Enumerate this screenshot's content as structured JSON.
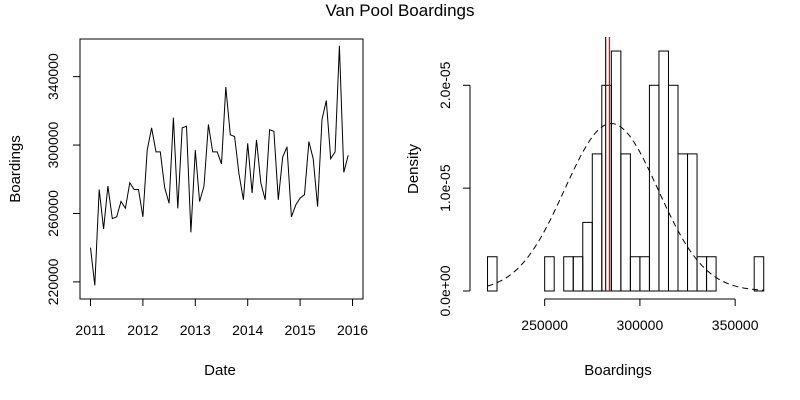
{
  "title": "Van Pool Boardings",
  "colors": {
    "line": "#000000",
    "mean_line": "#7f0000",
    "median_line": "#ff0000"
  },
  "chart_data": [
    {
      "type": "line",
      "xlabel": "Date",
      "ylabel": "Boardings",
      "xlim": [
        2010.8,
        2016.2
      ],
      "ylim": [
        210000,
        362000
      ],
      "xticks": [
        2011,
        2012,
        2013,
        2014,
        2015,
        2016
      ],
      "yticks": [
        220000,
        260000,
        300000,
        340000
      ],
      "series": [
        {
          "x": [
            2011.0,
            2011.083,
            2011.167,
            2011.25,
            2011.333,
            2011.417,
            2011.5,
            2011.583,
            2011.667,
            2011.75,
            2011.833,
            2011.917,
            2012.0,
            2012.083,
            2012.167,
            2012.25,
            2012.333,
            2012.417,
            2012.5,
            2012.583,
            2012.667,
            2012.75,
            2012.833,
            2012.917,
            2013.0,
            2013.083,
            2013.167,
            2013.25,
            2013.333,
            2013.417,
            2013.5,
            2013.583,
            2013.667,
            2013.75,
            2013.833,
            2013.917,
            2014.0,
            2014.083,
            2014.167,
            2014.25,
            2014.333,
            2014.417,
            2014.5,
            2014.583,
            2014.667,
            2014.75,
            2014.833,
            2014.917,
            2015.0,
            2015.083,
            2015.167,
            2015.25,
            2015.333,
            2015.417,
            2015.5,
            2015.583,
            2015.667,
            2015.75,
            2015.833,
            2015.917
          ],
          "y": [
            240000,
            218000,
            274000,
            251000,
            276000,
            257000,
            258000,
            267000,
            263000,
            278000,
            274000,
            274000,
            258000,
            297000,
            310000,
            296000,
            296000,
            275000,
            266000,
            316000,
            263000,
            310000,
            311000,
            249000,
            297000,
            267000,
            276000,
            312000,
            296000,
            296000,
            289000,
            334000,
            306000,
            305000,
            283000,
            268000,
            301000,
            272000,
            303000,
            278000,
            268000,
            309000,
            308000,
            268000,
            293000,
            299000,
            258000,
            265000,
            269000,
            271000,
            302000,
            292000,
            264000,
            315000,
            326000,
            292000,
            296000,
            358000,
            284000,
            294000
          ]
        }
      ]
    },
    {
      "type": "bar",
      "subtype": "histogram",
      "xlabel": "Boardings",
      "ylabel": "Density",
      "xlim": [
        215000,
        362000
      ],
      "ylim": [
        0,
        2.45e-05
      ],
      "xticks": [
        250000,
        300000,
        350000
      ],
      "yticks": [
        0,
        1e-05,
        2e-05
      ],
      "ytick_labels": [
        "0.0e+00",
        "1.0e-05",
        "2.0e-05"
      ],
      "bin_start": 220000,
      "bin_width": 5000,
      "densities": [
        3.33e-06,
        0,
        0,
        0,
        0,
        0,
        3.33e-06,
        0,
        3.33e-06,
        3.33e-06,
        6.67e-06,
        1.333e-05,
        2e-05,
        2.333e-05,
        1.333e-05,
        3.33e-06,
        3.33e-06,
        2e-05,
        2.333e-05,
        2e-05,
        1.333e-05,
        1.333e-05,
        3.33e-06,
        3.33e-06,
        0,
        0,
        0,
        0,
        3.33e-06
      ],
      "normal_curve": {
        "mean": 285000,
        "sd": 24500,
        "style": "dashed"
      },
      "vlines": [
        {
          "x": 282000,
          "color": "#7f0000"
        },
        {
          "x": 284000,
          "color": "#ff0000"
        }
      ]
    }
  ]
}
